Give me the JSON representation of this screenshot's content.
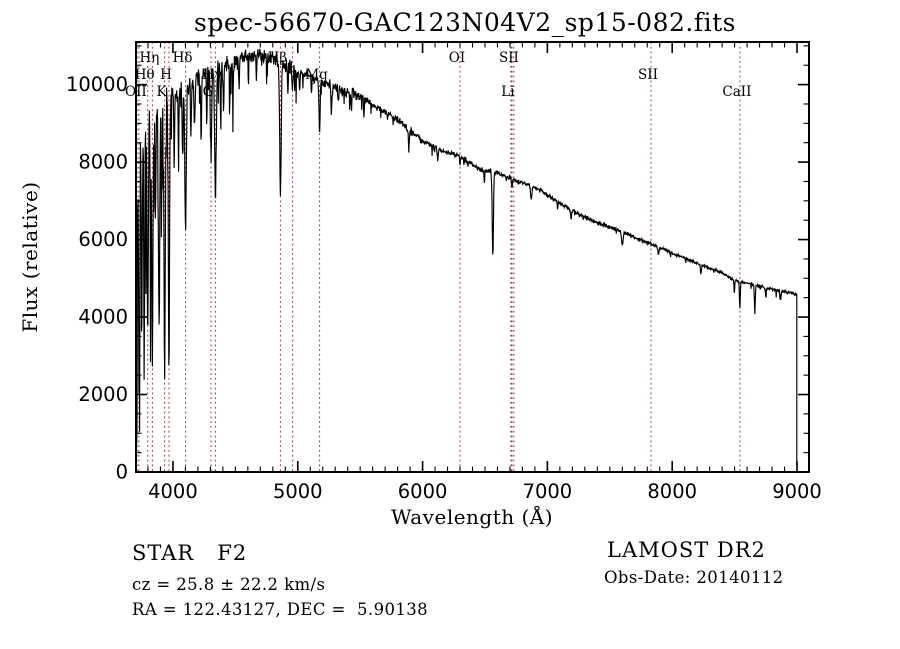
{
  "title": "spec-56670-GAC123N04V2_sp15-082.fits",
  "footer": {
    "class_line": "STAR   F2",
    "cz_line": "cz = 25.8 ± 22.2 km/s",
    "radec_line": "RA = 122.43127, DEC =  5.90138",
    "survey": "LAMOST DR2",
    "obs_date": "Obs-Date: 20140112"
  },
  "chart_data": {
    "type": "line",
    "title": "spec-56670-GAC123N04V2_sp15-082.fits",
    "xlabel": "Wavelength (Å)",
    "ylabel": "Flux (relative)",
    "xlim": [
      3704,
      9096
    ],
    "ylim": [
      0,
      11100
    ],
    "x_ticks": [
      4000,
      5000,
      6000,
      7000,
      8000,
      9000
    ],
    "x_minor_step": 100,
    "y_ticks": [
      0,
      2000,
      4000,
      6000,
      8000,
      10000
    ],
    "y_minor_step": 500,
    "grid": false,
    "axis_color": "#000000",
    "curve_color": "#000000",
    "marker_color": "#9a3939",
    "marker_style": "dotted",
    "line_markers": [
      {
        "wl": 3712,
        "label": "",
        "row": 0
      },
      {
        "wl": 3727,
        "label": "OII",
        "row": 3
      },
      {
        "wl": 3798,
        "label": "Hθ",
        "row": 2
      },
      {
        "wl": 3835,
        "label": "Hη",
        "row": 1
      },
      {
        "wl": 3933,
        "label": "K",
        "row": 3
      },
      {
        "wl": 3968,
        "label": "H",
        "row": 2
      },
      {
        "wl": 4101,
        "label": "Hδ",
        "row": 1
      },
      {
        "wl": 4305,
        "label": "G",
        "row": 3
      },
      {
        "wl": 4340,
        "label": "Hγ",
        "row": 2
      },
      {
        "wl": 4861,
        "label": "Hβ",
        "row": 1
      },
      {
        "wl": 4959,
        "label": "",
        "row": 0
      },
      {
        "wl": 5175,
        "label": "Mg",
        "row": 2
      },
      {
        "wl": 6300,
        "label": "OI",
        "row": 1
      },
      {
        "wl": 6708,
        "label": "Li",
        "row": 3
      },
      {
        "wl": 6716,
        "label": "SII",
        "row": 1
      },
      {
        "wl": 6731,
        "label": "",
        "row": 0
      },
      {
        "wl": 7830,
        "label": "SII",
        "row": 2
      },
      {
        "wl": 8542,
        "label": "CaII",
        "row": 3
      }
    ],
    "continuum": [
      [
        3705,
        8000
      ],
      [
        3720,
        8700
      ],
      [
        3740,
        8900
      ],
      [
        3760,
        9000
      ],
      [
        3780,
        9150
      ],
      [
        3800,
        9350
      ],
      [
        3850,
        9450
      ],
      [
        3900,
        9500
      ],
      [
        3950,
        9600
      ],
      [
        4000,
        9700
      ],
      [
        4050,
        9800
      ],
      [
        4100,
        9950
      ],
      [
        4150,
        10050
      ],
      [
        4200,
        10150
      ],
      [
        4250,
        10250
      ],
      [
        4300,
        10350
      ],
      [
        4350,
        10420
      ],
      [
        4400,
        10500
      ],
      [
        4450,
        10570
      ],
      [
        4500,
        10640
      ],
      [
        4550,
        10700
      ],
      [
        4600,
        10760
      ],
      [
        4650,
        10800
      ],
      [
        4700,
        10780
      ],
      [
        4750,
        10740
      ],
      [
        4800,
        10690
      ],
      [
        4850,
        10600
      ],
      [
        4900,
        10480
      ],
      [
        4950,
        10380
      ],
      [
        5000,
        10330
      ],
      [
        5050,
        10280
      ],
      [
        5100,
        10230
      ],
      [
        5150,
        10130
      ],
      [
        5200,
        10030
      ],
      [
        5250,
        9980
      ],
      [
        5300,
        9930
      ],
      [
        5350,
        9860
      ],
      [
        5400,
        9800
      ],
      [
        5450,
        9760
      ],
      [
        5500,
        9720
      ],
      [
        5550,
        9620
      ],
      [
        5600,
        9480
      ],
      [
        5650,
        9380
      ],
      [
        5700,
        9280
      ],
      [
        5750,
        9200
      ],
      [
        5800,
        9100
      ],
      [
        5850,
        8980
      ],
      [
        5900,
        8820
      ],
      [
        5950,
        8680
      ],
      [
        6000,
        8560
      ],
      [
        6050,
        8470
      ],
      [
        6100,
        8380
      ],
      [
        6150,
        8300
      ],
      [
        6200,
        8250
      ],
      [
        6250,
        8200
      ],
      [
        6300,
        8160
      ],
      [
        6350,
        8050
      ],
      [
        6400,
        7930
      ],
      [
        6450,
        7830
      ],
      [
        6500,
        7790
      ],
      [
        6550,
        7760
      ],
      [
        6600,
        7730
      ],
      [
        6650,
        7650
      ],
      [
        6700,
        7590
      ],
      [
        6750,
        7520
      ],
      [
        6800,
        7460
      ],
      [
        6850,
        7420
      ],
      [
        6900,
        7330
      ],
      [
        6950,
        7270
      ],
      [
        7000,
        7150
      ],
      [
        7100,
        6950
      ],
      [
        7200,
        6750
      ],
      [
        7300,
        6580
      ],
      [
        7400,
        6440
      ],
      [
        7500,
        6320
      ],
      [
        7600,
        6200
      ],
      [
        7700,
        6050
      ],
      [
        7800,
        5920
      ],
      [
        7900,
        5800
      ],
      [
        8000,
        5650
      ],
      [
        8100,
        5520
      ],
      [
        8200,
        5390
      ],
      [
        8300,
        5260
      ],
      [
        8400,
        5140
      ],
      [
        8500,
        4950
      ],
      [
        8600,
        4870
      ],
      [
        8700,
        4790
      ],
      [
        8800,
        4720
      ],
      [
        8900,
        4650
      ],
      [
        9000,
        4580
      ]
    ],
    "absorption_lines": [
      [
        3706,
        7000,
        3
      ],
      [
        3712,
        5000,
        3
      ],
      [
        3727,
        5500,
        4
      ],
      [
        3734,
        3000,
        3
      ],
      [
        3750,
        5800,
        4
      ],
      [
        3770,
        6500,
        4
      ],
      [
        3798,
        5800,
        5
      ],
      [
        3820,
        3500,
        3
      ],
      [
        3835,
        6800,
        5
      ],
      [
        3860,
        3000,
        3
      ],
      [
        3889,
        6000,
        5
      ],
      [
        3910,
        2500,
        3
      ],
      [
        3933,
        7200,
        5
      ],
      [
        3968,
        6800,
        5
      ],
      [
        4010,
        2000,
        3
      ],
      [
        4045,
        1800,
        3
      ],
      [
        4077,
        2000,
        3
      ],
      [
        4101,
        3600,
        6
      ],
      [
        4144,
        1500,
        3
      ],
      [
        4172,
        1300,
        3
      ],
      [
        4226,
        1800,
        3
      ],
      [
        4271,
        1400,
        3
      ],
      [
        4305,
        2200,
        5
      ],
      [
        4340,
        3400,
        6
      ],
      [
        4383,
        1600,
        3
      ],
      [
        4405,
        1200,
        3
      ],
      [
        4457,
        800,
        3
      ],
      [
        4481,
        900,
        3
      ],
      [
        4530,
        700,
        3
      ],
      [
        4668,
        800,
        3
      ],
      [
        4861,
        3400,
        6
      ],
      [
        4920,
        600,
        3
      ],
      [
        4957,
        500,
        3
      ],
      [
        5015,
        400,
        3
      ],
      [
        5110,
        400,
        3
      ],
      [
        5175,
        1400,
        4
      ],
      [
        5270,
        700,
        4
      ],
      [
        5325,
        400,
        3
      ],
      [
        5430,
        400,
        3
      ],
      [
        5530,
        400,
        3
      ],
      [
        5890,
        500,
        4
      ],
      [
        6122,
        300,
        3
      ],
      [
        6300,
        250,
        3
      ],
      [
        6495,
        300,
        3
      ],
      [
        6563,
        2100,
        5
      ],
      [
        6717,
        250,
        3
      ],
      [
        6870,
        350,
        5
      ],
      [
        7190,
        200,
        4
      ],
      [
        7600,
        350,
        6
      ],
      [
        7890,
        200,
        4
      ],
      [
        8230,
        200,
        4
      ],
      [
        8498,
        350,
        3
      ],
      [
        8542,
        700,
        3.5
      ],
      [
        8662,
        700,
        3.5
      ],
      [
        8750,
        250,
        3
      ],
      [
        8870,
        200,
        3
      ]
    ],
    "noise_regions": [
      [
        3704,
        3780,
        700,
        0.3,
        6000
      ],
      [
        3780,
        3990,
        420,
        0.22,
        4500
      ],
      [
        3990,
        4500,
        260,
        0.1,
        1800
      ],
      [
        4500,
        5000,
        200,
        0.06,
        1200
      ],
      [
        5000,
        5500,
        140,
        0.05,
        700
      ],
      [
        5500,
        6000,
        90,
        0.04,
        400
      ],
      [
        6000,
        6600,
        70,
        0.04,
        350
      ],
      [
        6600,
        7500,
        60,
        0.03,
        300
      ],
      [
        7500,
        9001,
        45,
        0.03,
        300
      ]
    ],
    "spectrum_range": [
      3706,
      8998
    ],
    "end_drop_flux": 150,
    "sample_step": 3,
    "seed": 7
  }
}
